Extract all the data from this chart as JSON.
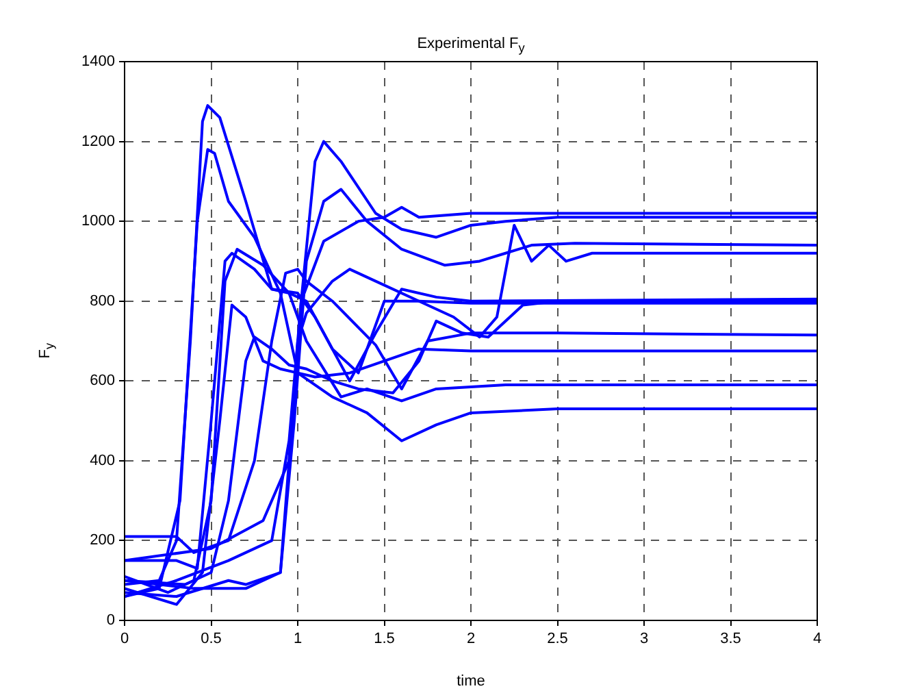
{
  "chart_data": {
    "type": "line",
    "title": "Experimental F$_{y}$",
    "xlabel": "time",
    "ylabel": "F$_{y}$",
    "xlim": [
      0,
      4
    ],
    "xticks": [
      0,
      0.5,
      1,
      1.5,
      2,
      2.5,
      3,
      3.5,
      4
    ],
    "ylim": [
      0,
      1400
    ],
    "yticks": [
      0,
      200,
      400,
      600,
      800,
      1000,
      1200,
      1400
    ],
    "grid": true,
    "marker": "none",
    "line_style": "solid",
    "series": [
      {
        "color": "#0000ff",
        "x": [
          0,
          0.2,
          0.3,
          0.38,
          0.45,
          0.48,
          0.55,
          0.7,
          0.85,
          0.95,
          1.05,
          1.2,
          1.35,
          1.5,
          1.7,
          2,
          4
        ],
        "values": [
          90,
          100,
          200,
          700,
          1250,
          1290,
          1260,
          1050,
          830,
          820,
          800,
          680,
          620,
          800,
          800,
          795,
          795
        ]
      },
      {
        "color": "#0000ff",
        "x": [
          0,
          0.2,
          0.32,
          0.42,
          0.48,
          0.52,
          0.6,
          0.75,
          0.9,
          1,
          1.2,
          1.4,
          1.6,
          1.8,
          2,
          2.5,
          4
        ],
        "values": [
          60,
          80,
          300,
          1000,
          1180,
          1170,
          1050,
          960,
          820,
          620,
          560,
          520,
          450,
          490,
          520,
          530,
          530
        ]
      },
      {
        "color": "#0000ff",
        "x": [
          0,
          0.25,
          0.4,
          0.5,
          0.58,
          0.65,
          0.8,
          0.95,
          1.05,
          1.25,
          1.4,
          1.6,
          1.8,
          2.2,
          4
        ],
        "values": [
          110,
          70,
          100,
          300,
          850,
          930,
          890,
          820,
          700,
          560,
          580,
          550,
          580,
          590,
          590
        ]
      },
      {
        "color": "#0000ff",
        "x": [
          0,
          0.3,
          0.42,
          0.5,
          0.58,
          0.62,
          0.75,
          0.85,
          1,
          1.1,
          1.3,
          1.45,
          1.6,
          1.8,
          2,
          4
        ],
        "values": [
          150,
          150,
          130,
          500,
          900,
          920,
          880,
          830,
          820,
          760,
          600,
          720,
          830,
          810,
          800,
          805
        ]
      },
      {
        "color": "#0000ff",
        "x": [
          0,
          0.3,
          0.45,
          0.55,
          0.62,
          0.7,
          0.8,
          0.9,
          1,
          1.1,
          1.3,
          1.5,
          1.7,
          2,
          4
        ],
        "values": [
          80,
          40,
          120,
          500,
          790,
          760,
          650,
          630,
          620,
          610,
          620,
          650,
          680,
          675,
          675
        ]
      },
      {
        "color": "#0000ff",
        "x": [
          0,
          0.35,
          0.5,
          0.6,
          0.7,
          0.75,
          0.85,
          0.95,
          1.05,
          1.2,
          1.35,
          1.55,
          1.7,
          1.8,
          1.95,
          2.1,
          2.3,
          2.5,
          4
        ],
        "values": [
          100,
          90,
          120,
          300,
          650,
          710,
          680,
          640,
          630,
          600,
          580,
          570,
          650,
          750,
          720,
          710,
          790,
          800,
          800
        ]
      },
      {
        "color": "#0000ff",
        "x": [
          0,
          0.3,
          0.4,
          0.6,
          0.75,
          0.85,
          0.93,
          1,
          1.05,
          1.2,
          1.45,
          1.6,
          1.75,
          2,
          2.5,
          4
        ],
        "values": [
          210,
          210,
          170,
          200,
          400,
          700,
          870,
          880,
          850,
          800,
          690,
          580,
          700,
          720,
          720,
          715
        ]
      },
      {
        "color": "#0000ff",
        "x": [
          0,
          0.3,
          0.6,
          0.7,
          0.9,
          0.95,
          1.02,
          1.1,
          1.15,
          1.25,
          1.45,
          1.6,
          1.8,
          2,
          2.2,
          2.5,
          4
        ],
        "values": [
          70,
          60,
          100,
          90,
          120,
          400,
          800,
          1150,
          1200,
          1150,
          1020,
          980,
          960,
          990,
          1000,
          1010,
          1010
        ]
      },
      {
        "color": "#0000ff",
        "x": [
          0,
          0.4,
          0.7,
          0.9,
          0.98,
          1.05,
          1.15,
          1.25,
          1.4,
          1.6,
          1.85,
          2.05,
          2.2,
          2.35,
          2.6,
          4
        ],
        "values": [
          100,
          80,
          80,
          120,
          500,
          900,
          1050,
          1080,
          1000,
          930,
          890,
          900,
          920,
          940,
          945,
          940
        ]
      },
      {
        "color": "#0000ff",
        "x": [
          0,
          0.3,
          0.6,
          0.85,
          0.95,
          1.02,
          1.15,
          1.35,
          1.5,
          1.6,
          1.7,
          2,
          4
        ],
        "values": [
          60,
          100,
          150,
          200,
          450,
          800,
          950,
          1000,
          1010,
          1035,
          1010,
          1020,
          1020
        ]
      },
      {
        "color": "#0000ff",
        "x": [
          0,
          0.5,
          0.8,
          0.95,
          1,
          1.05,
          1.2,
          1.3,
          1.45,
          1.7,
          1.9,
          2.05,
          2.15,
          2.25,
          2.35,
          2.45,
          2.55,
          2.7,
          4
        ],
        "values": [
          150,
          180,
          250,
          400,
          700,
          770,
          850,
          880,
          850,
          800,
          760,
          710,
          760,
          990,
          900,
          940,
          900,
          920,
          920
        ]
      }
    ]
  }
}
